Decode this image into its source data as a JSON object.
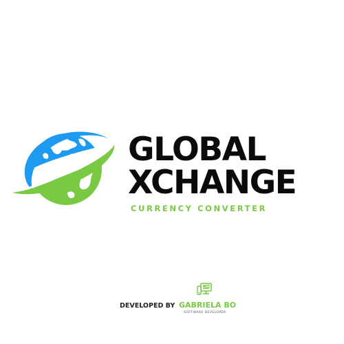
{
  "brand": {
    "title_line1": "GLOBAL",
    "title_line2": "XCHANGE",
    "subtitle": "CURRENCY CONVERTER",
    "logo_icon": "globe-orbit-icon"
  },
  "credit": {
    "label": "DEVELOPED BY",
    "name": "GABRIELA BO",
    "role": "SOFTWARE DEVELOPER",
    "icon": "computer-monitor-icon"
  },
  "colors": {
    "blue": "#1e9bf0",
    "green": "#7ac943",
    "text": "#0b0b0b",
    "background": "#ffffff"
  }
}
